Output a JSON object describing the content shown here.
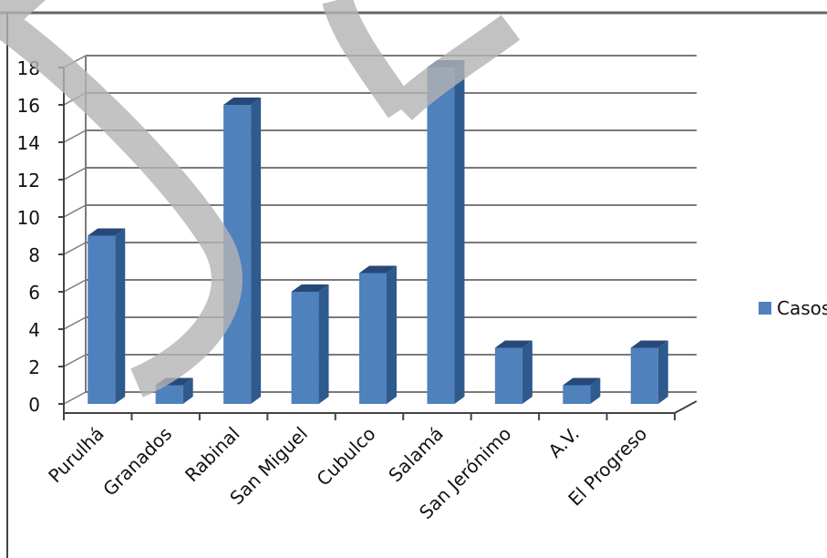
{
  "chart_data": {
    "type": "bar",
    "categories": [
      "Purulhá",
      "Granados",
      "Rabinal",
      "San Miguel",
      "Cubulco",
      "Salamá",
      "San Jerónimo",
      "A.V.",
      "El Progreso"
    ],
    "series": [
      {
        "name": "Casos",
        "values": [
          9,
          1,
          16,
          6,
          7,
          18,
          3,
          1,
          3
        ]
      }
    ],
    "ylim": [
      0,
      18
    ],
    "yticks": [
      0,
      2,
      4,
      6,
      8,
      10,
      12,
      14,
      16,
      18
    ],
    "grid": true,
    "legend_position": "right",
    "colors": {
      "bar_front": "#4F81BD",
      "bar_side": "#2F5A8E",
      "bar_top": "#27497A",
      "grid": "#7a7a7a",
      "watermark": "#b4b4b4"
    }
  }
}
